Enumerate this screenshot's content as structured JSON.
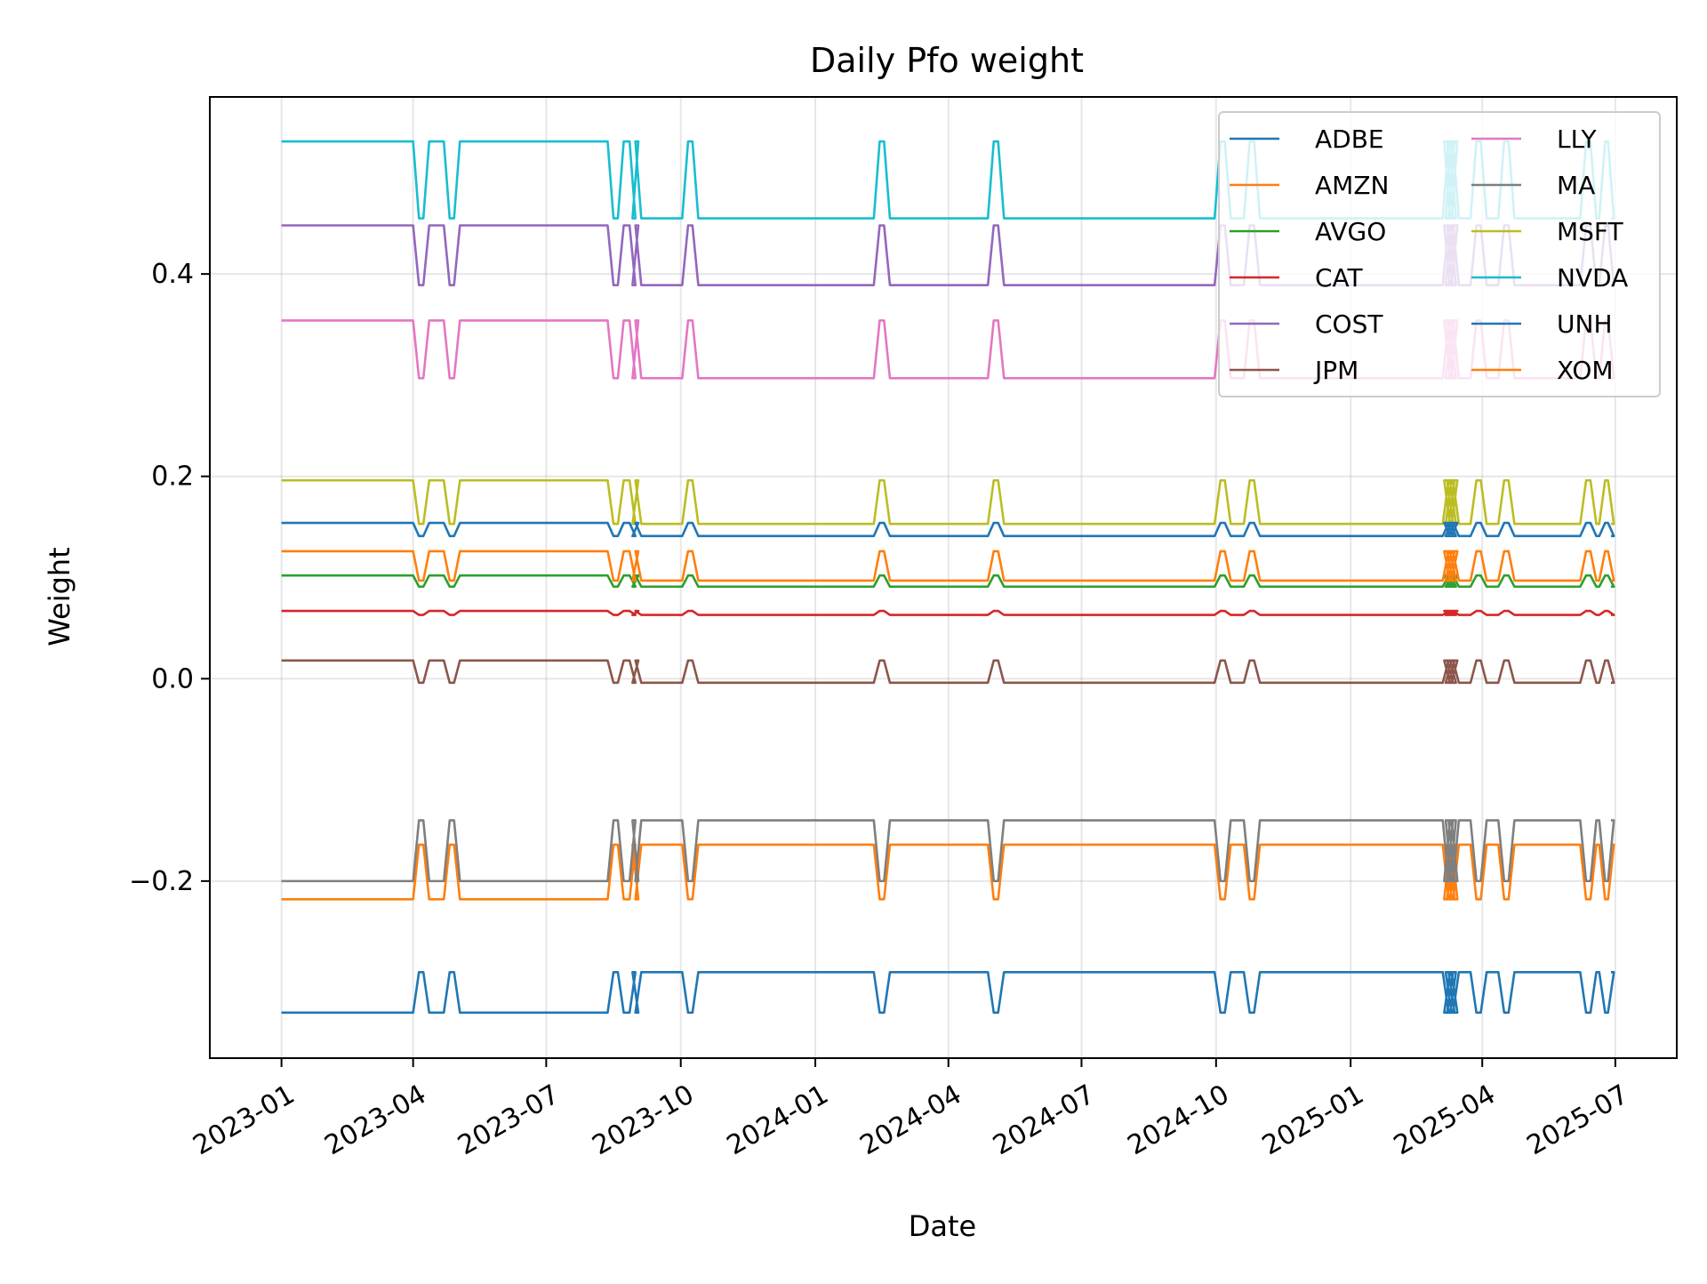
{
  "chart_data": {
    "type": "line",
    "title": "Daily Pfo weight",
    "xlabel": "Date",
    "ylabel": "Weight",
    "xlim": [
      "2022-11-13",
      "2025-08-12"
    ],
    "ylim": [
      -0.375,
      0.575
    ],
    "x_ticks": [
      "2023-01",
      "2023-04",
      "2023-07",
      "2023-10",
      "2024-01",
      "2024-04",
      "2024-07",
      "2024-10",
      "2025-01",
      "2025-04",
      "2025-07"
    ],
    "y_ticks": [
      -0.2,
      0.0,
      0.2,
      0.4
    ],
    "y_tick_labels": [
      "−0.2",
      "0.0",
      "0.2",
      "0.4"
    ],
    "grid": true,
    "legend": {
      "placement": "top-right",
      "columns": 2
    },
    "regime_changes": [
      "2023-04-01",
      "2023-04-08",
      "2023-04-22",
      "2023-04-29",
      "2023-08-12",
      "2023-08-19",
      "2023-08-27",
      "2023-08-29",
      "2023-08-31",
      "2023-10-02",
      "2023-10-09",
      "2024-02-10",
      "2024-02-17",
      "2024-04-28",
      "2024-05-05",
      "2024-09-30",
      "2024-10-07",
      "2024-10-20",
      "2024-10-27",
      "2025-03-05",
      "2025-03-06",
      "2025-03-07",
      "2025-03-08",
      "2025-03-09",
      "2025-03-10",
      "2025-03-11",
      "2025-03-12",
      "2025-03-24",
      "2025-03-31",
      "2025-04-12",
      "2025-04-19",
      "2025-06-07",
      "2025-06-14",
      "2025-06-20",
      "2025-06-26"
    ],
    "initial_state": "A",
    "end_date": "2025-06-28",
    "series": [
      {
        "name": "ADBE",
        "color": "#1f77b4",
        "values": {
          "A": -0.33,
          "B": -0.29
        }
      },
      {
        "name": "AMZN",
        "color": "#ff7f0e",
        "values": {
          "A": -0.218,
          "B": -0.164
        }
      },
      {
        "name": "AVGO",
        "color": "#2ca02c",
        "values": {
          "A": 0.102,
          "B": 0.091
        }
      },
      {
        "name": "CAT",
        "color": "#d62728",
        "values": {
          "A": 0.067,
          "B": 0.063
        }
      },
      {
        "name": "COST",
        "color": "#9467bd",
        "values": {
          "A": 0.448,
          "B": 0.389
        }
      },
      {
        "name": "JPM",
        "color": "#8c564b",
        "values": {
          "A": 0.018,
          "B": -0.004
        }
      },
      {
        "name": "LLY",
        "color": "#e377c2",
        "values": {
          "A": 0.354,
          "B": 0.297
        }
      },
      {
        "name": "MA",
        "color": "#7f7f7f",
        "values": {
          "A": -0.2,
          "B": -0.14
        }
      },
      {
        "name": "MSFT",
        "color": "#bcbd22",
        "values": {
          "A": 0.196,
          "B": 0.153
        }
      },
      {
        "name": "NVDA",
        "color": "#17becf",
        "values": {
          "A": 0.531,
          "B": 0.455
        }
      },
      {
        "name": "UNH",
        "color": "#1f77b4",
        "values": {
          "A": 0.154,
          "B": 0.141
        }
      },
      {
        "name": "XOM",
        "color": "#ff7f0e",
        "values": {
          "A": 0.126,
          "B": 0.097
        }
      }
    ]
  }
}
